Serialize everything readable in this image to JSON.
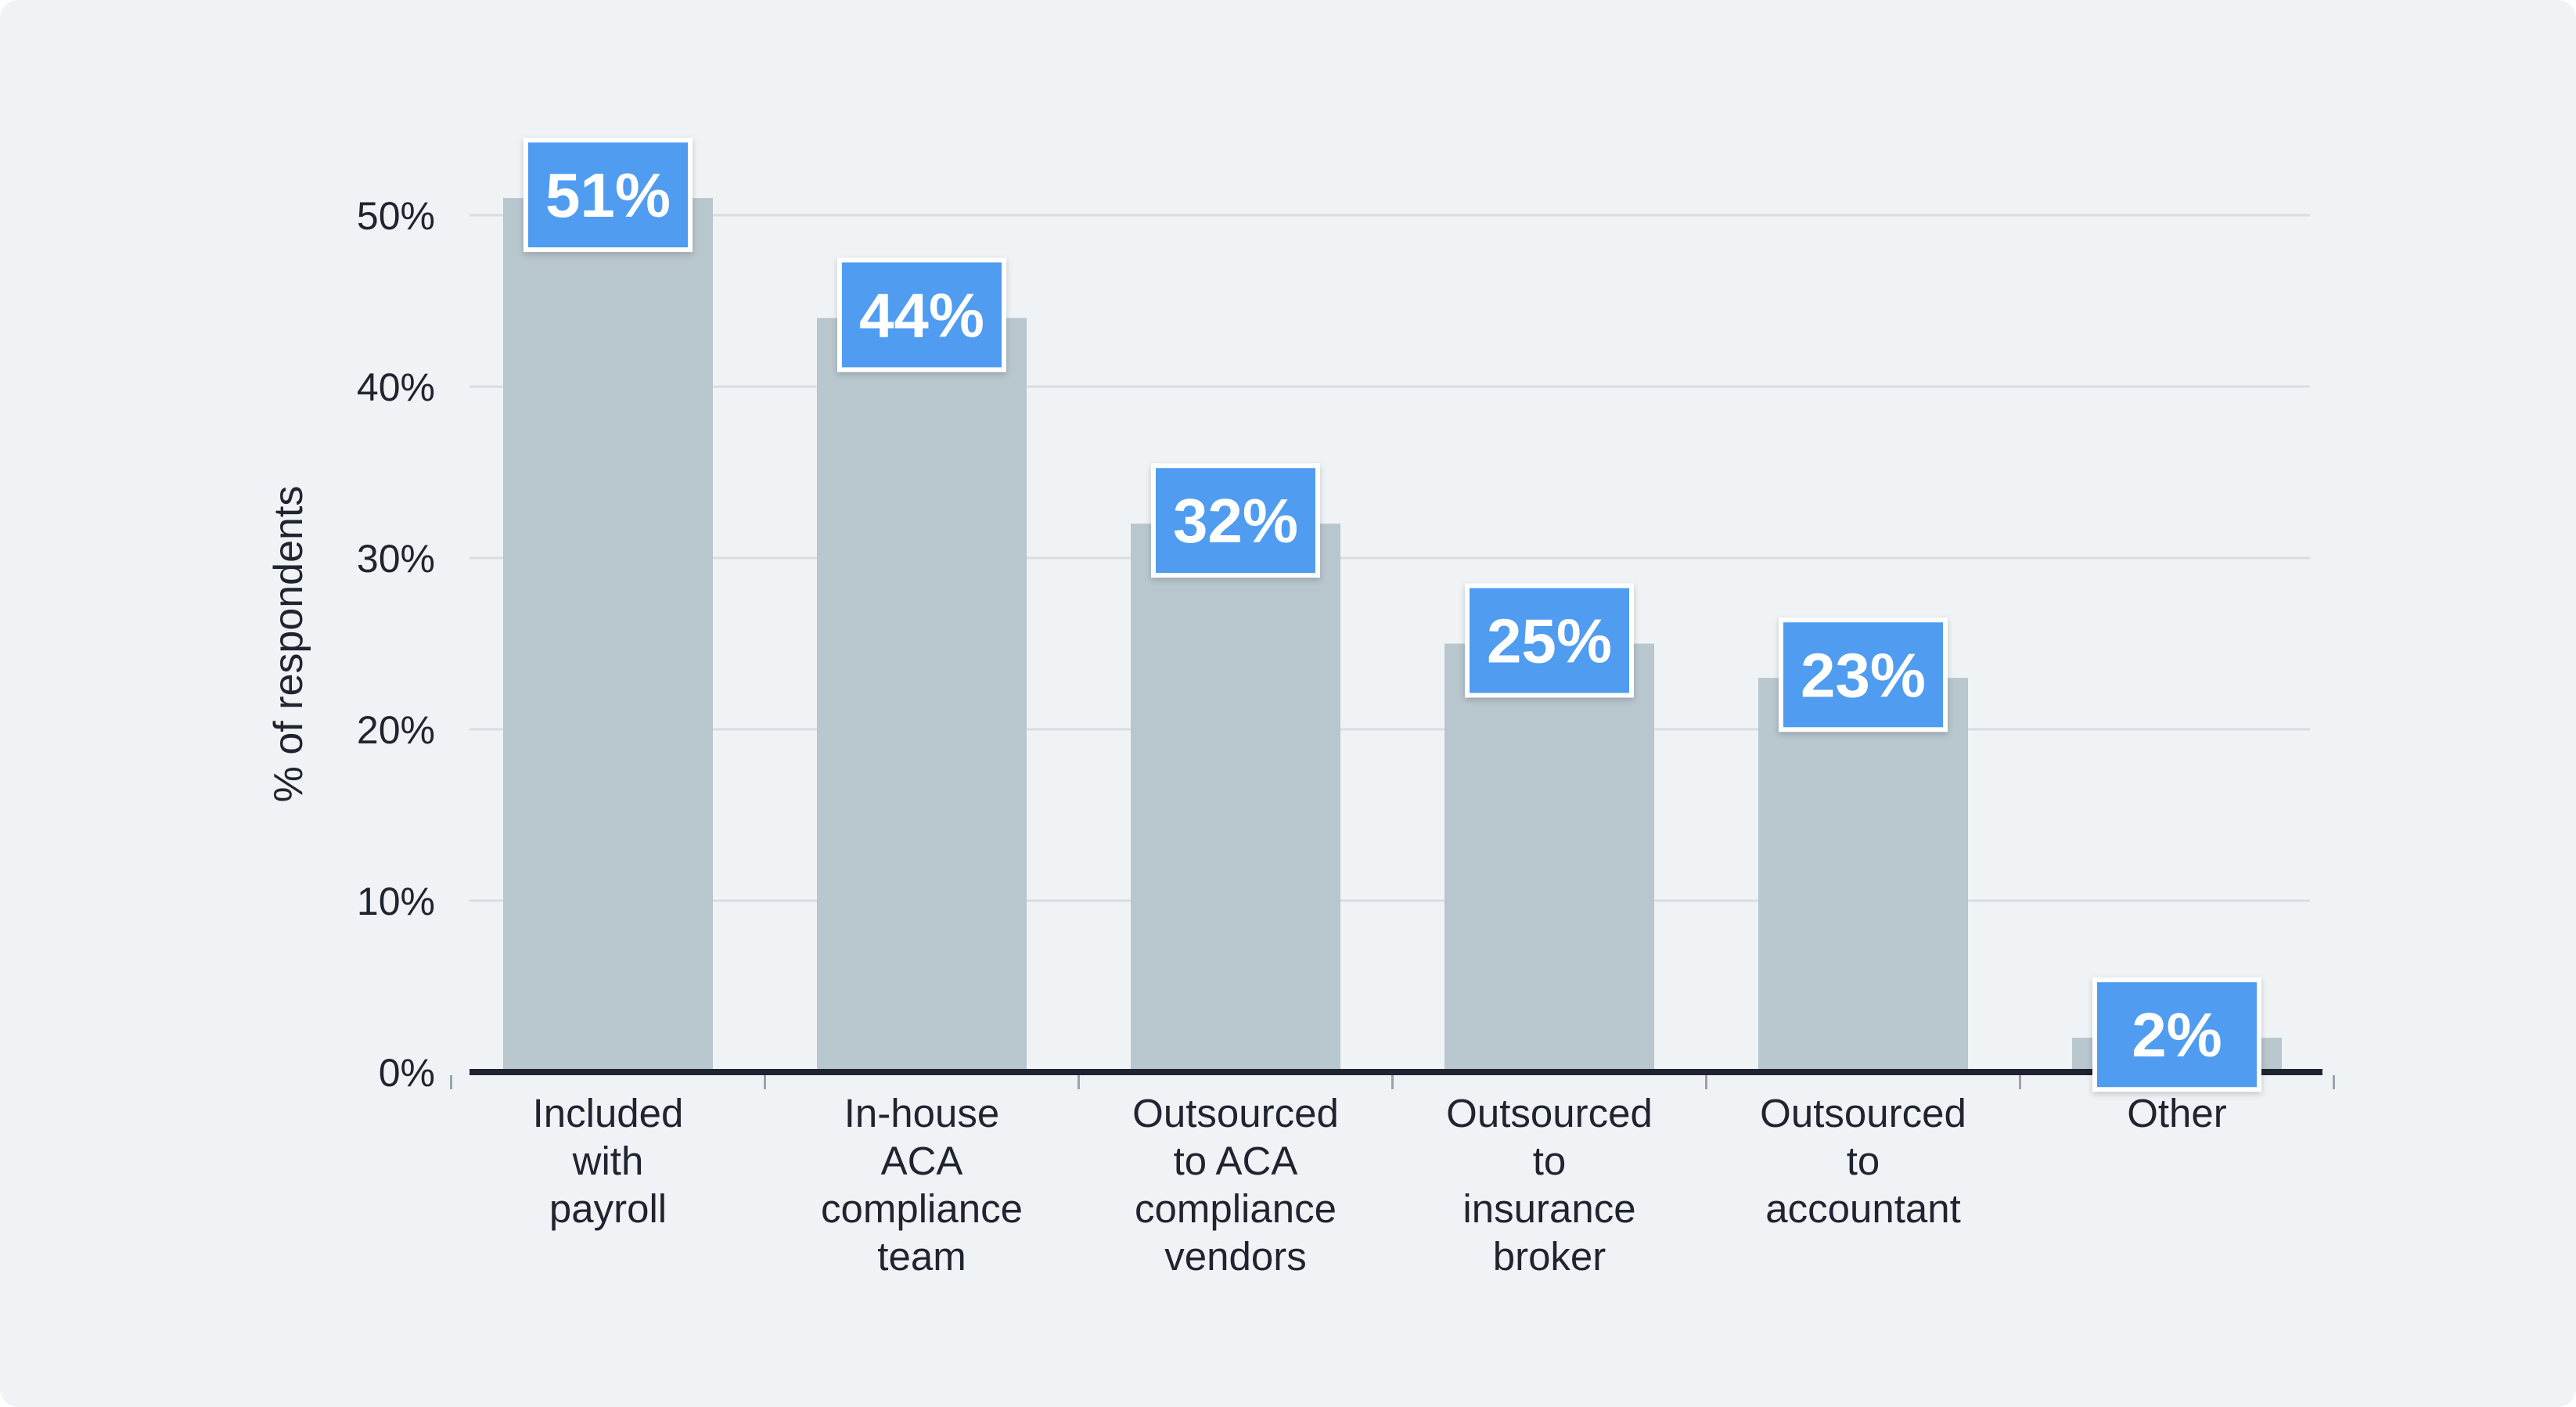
{
  "chart_data": {
    "type": "bar",
    "categories": [
      [
        "Included",
        "with",
        "payroll"
      ],
      [
        "In-house",
        "ACA",
        "compliance",
        "team"
      ],
      [
        "Outsourced",
        "to ACA",
        "compliance",
        "vendors"
      ],
      [
        "Outsourced",
        "to",
        "insurance",
        "broker"
      ],
      [
        "Outsourced",
        "to",
        "accountant"
      ],
      [
        "Other"
      ]
    ],
    "values": [
      51,
      44,
      32,
      25,
      23,
      2
    ],
    "data_labels": [
      "51%",
      "44%",
      "32%",
      "25%",
      "23%",
      "2%"
    ],
    "ylabel": "% of respondents",
    "ylim": [
      0,
      50
    ],
    "yticks": [
      0,
      10,
      20,
      30,
      40,
      50
    ],
    "ytick_labels": [
      "0%",
      "10%",
      "20%",
      "30%",
      "40%",
      "50%"
    ],
    "grid": true,
    "colors": {
      "bar": "#b8c6ce",
      "label_box": "#4f9cf0",
      "label_border": "#ffffff",
      "grid": "#d8dde1",
      "axis": "#1f2430",
      "background": "#eff3f5"
    }
  }
}
